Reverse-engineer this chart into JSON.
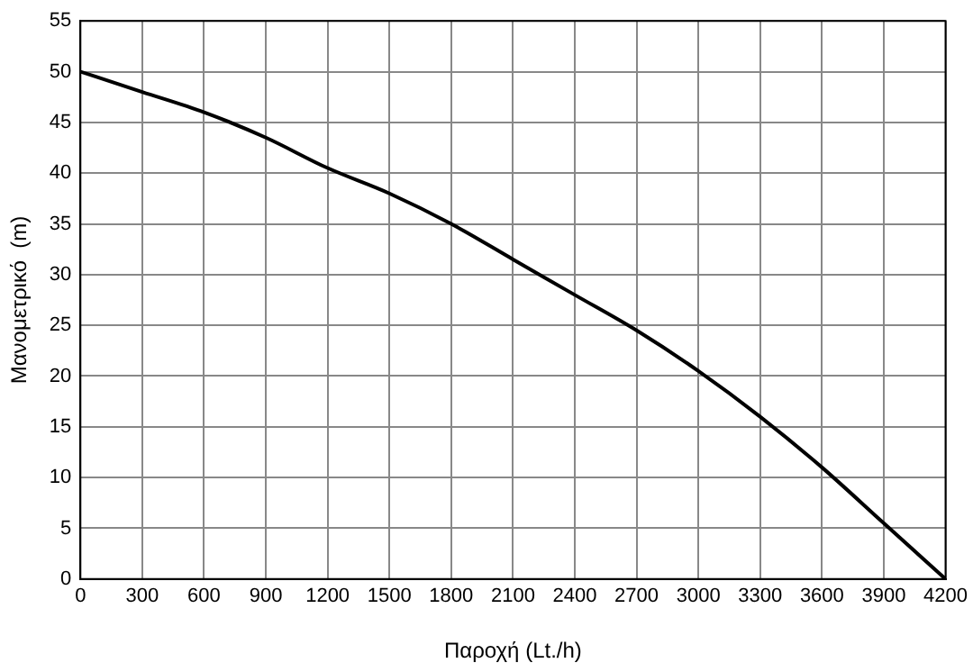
{
  "chart_data": {
    "type": "line",
    "xlabel": "Παροχή (Lt./h)",
    "ylabel": "Μανομετρικό  (m)",
    "series": [
      {
        "color": "#000000",
        "x": [
          0,
          300,
          600,
          900,
          1200,
          1500,
          1800,
          2100,
          2400,
          2700,
          3000,
          3300,
          3600,
          3900,
          4200
        ],
        "values": [
          50,
          48,
          46,
          43.5,
          40.5,
          38,
          35,
          31.5,
          28,
          24.5,
          20.5,
          16,
          11,
          5.5,
          0
        ]
      }
    ],
    "xlim": [
      0,
      4200
    ],
    "xticks": [
      0,
      300,
      600,
      900,
      1200,
      1500,
      1800,
      2100,
      2400,
      2700,
      3000,
      3300,
      3600,
      3900,
      4200
    ],
    "ylim": [
      0,
      55
    ],
    "yticks": [
      0,
      5,
      10,
      15,
      20,
      25,
      30,
      35,
      40,
      45,
      50,
      55
    ],
    "grid": true,
    "legend": false,
    "marker": "none",
    "line_style": "solid"
  }
}
